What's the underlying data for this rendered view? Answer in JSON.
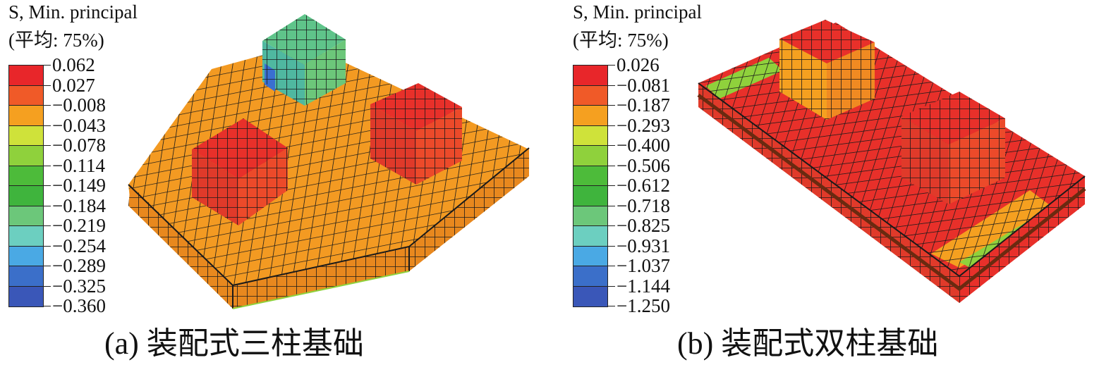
{
  "panels": [
    {
      "id": "a",
      "legend_title_line1": "S, Min. principal",
      "legend_title_line2": "(平均: 75%)",
      "legend_values": [
        "0.062",
        "0.027",
        "−0.008",
        "−0.043",
        "−0.078",
        "−0.114",
        "−0.149",
        "−0.184",
        "−0.219",
        "−0.254",
        "−0.289",
        "−0.325",
        "−0.360"
      ],
      "caption": "(a) 装配式三柱基础"
    },
    {
      "id": "b",
      "legend_title_line1": "S, Min. principal",
      "legend_title_line2": "(平均: 75%)",
      "legend_values": [
        "0.026",
        "−0.081",
        "−0.187",
        "−0.293",
        "−0.400",
        "−0.506",
        "−0.612",
        "−0.718",
        "−0.825",
        "−0.931",
        "−1.037",
        "−1.144",
        "−1.250"
      ],
      "caption": "(b) 装配式双柱基础"
    }
  ],
  "colors": {
    "legend_bands": [
      "#e8262a",
      "#f05a28",
      "#f5a020",
      "#cfe23a",
      "#8fd13c",
      "#4dbb3a",
      "#3fb43d",
      "#6cc77a",
      "#6ccfc0",
      "#4aa9e4",
      "#3b6fc9",
      "#3a57b8"
    ],
    "mesh_orange": "#f39a22",
    "mesh_red": "#e8302a",
    "mesh_green": "#6cc77a",
    "grid_line": "#1a1a1a"
  }
}
